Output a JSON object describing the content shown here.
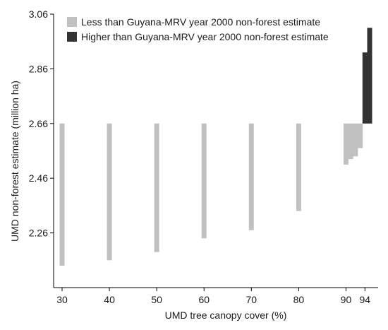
{
  "chart_data": {
    "type": "bar",
    "xlabel": "UMD tree canopy cover (%)",
    "ylabel": "UMD non-forest estimate (million ha)",
    "ylim": [
      2.06,
      3.06
    ],
    "baseline": 2.66,
    "yticks": [
      2.26,
      2.46,
      2.66,
      2.86,
      3.06
    ],
    "yticklabels": [
      "2.26",
      "2.46",
      "2.66",
      "2.86",
      "3.06"
    ],
    "xticks": [
      30,
      40,
      50,
      60,
      70,
      80,
      90,
      94
    ],
    "xticklabels": [
      "30",
      "40",
      "50",
      "60",
      "70",
      "80",
      "90",
      "94"
    ],
    "xlim": [
      28,
      95.5
    ],
    "legend": {
      "placement": "top-left",
      "items": [
        {
          "label": "Less than Guyana-MRV year 2000 non-forest estimate",
          "color": "#c0c0c0"
        },
        {
          "label": "Higher than Guyana-MRV year 2000 non-forest estimate",
          "color": "#333333"
        }
      ]
    },
    "series": [
      {
        "name": "Less than Guyana-MRV year 2000 non-forest estimate",
        "color": "#c0c0c0",
        "x": [
          30,
          40,
          50,
          60,
          70,
          80,
          90,
          91,
          92,
          93
        ],
        "values": [
          2.14,
          2.16,
          2.19,
          2.24,
          2.27,
          2.34,
          2.51,
          2.53,
          2.54,
          2.57
        ]
      },
      {
        "name": "Higher than Guyana-MRV year 2000 non-forest estimate",
        "color": "#333333",
        "x": [
          94,
          95
        ],
        "values": [
          2.92,
          3.01
        ]
      }
    ]
  }
}
